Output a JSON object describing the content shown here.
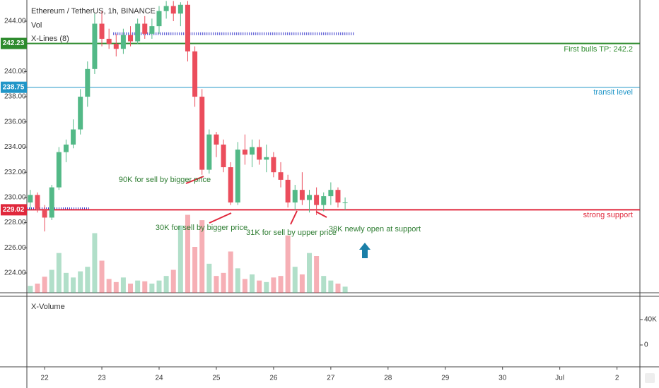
{
  "chart_data": {
    "type": "candlestick",
    "title": "Ethereum / TetherUS, 1h, BINANCE",
    "volume_label": "Vol",
    "lines_label": "X-Lines (8)",
    "lower_pane_label": "X-Volume",
    "up_color": "#53b987",
    "down_color": "#eb4d5c",
    "x": [
      21.75,
      21.875,
      22,
      22.125,
      22.25,
      22.375,
      22.5,
      22.625,
      22.75,
      22.875,
      23,
      23.125,
      23.25,
      23.375,
      23.5,
      23.625,
      23.75,
      23.875,
      24,
      24.125,
      24.25,
      24.375,
      24.5,
      24.625,
      24.75,
      24.875,
      25,
      25.125,
      25.25,
      25.375,
      25.5,
      25.625,
      25.75,
      25.875,
      26,
      26.125,
      26.25,
      26.375,
      26.5,
      26.625,
      26.75,
      26.875,
      27,
      27.125,
      27.25
    ],
    "open": [
      229.6,
      230.2,
      229.1,
      228.4,
      230.8,
      233.6,
      234.2,
      235.4,
      238,
      240.2,
      243.8,
      242.6,
      242.2,
      241.8,
      242.9,
      242.4,
      243.8,
      243,
      243.6,
      244.8,
      245.2,
      244.6,
      245.3,
      241.6,
      238,
      232.2,
      235,
      234.2,
      232.4,
      229.6,
      233.8,
      233.4,
      234,
      233,
      233.2,
      232,
      231.4,
      229.6,
      230.6,
      229.8,
      230.2,
      229.4,
      230.1,
      230.6,
      229.6
    ],
    "high": [
      230.6,
      230.4,
      229.4,
      231,
      234,
      234.6,
      236.2,
      238.6,
      240.8,
      244.6,
      244.8,
      243.4,
      243,
      243.4,
      243.6,
      244.2,
      244.4,
      244.2,
      245.2,
      245.6,
      245.6,
      245.5,
      245.6,
      242,
      238.6,
      235.4,
      235.2,
      234.6,
      232.8,
      234.4,
      235,
      234.6,
      234.6,
      234.2,
      233.6,
      232.8,
      231.8,
      231,
      232,
      230.6,
      230.8,
      230.4,
      231.2,
      230.8,
      230
    ],
    "low": [
      229,
      228.8,
      227.3,
      228.2,
      230.6,
      232.8,
      233.9,
      235,
      237.2,
      239.8,
      242,
      241.8,
      241.2,
      241.4,
      242,
      242.2,
      242.6,
      242.6,
      243,
      244.2,
      244,
      243.6,
      240.8,
      237.2,
      231.8,
      231.9,
      233.2,
      232,
      229.4,
      229.4,
      232.6,
      232.4,
      232.6,
      232,
      231.6,
      230.8,
      229.2,
      229,
      229.4,
      228.8,
      228.6,
      228.9,
      229.4,
      229.2,
      229
    ],
    "close": [
      230.2,
      229.1,
      228.4,
      230.8,
      233.6,
      234.2,
      235.4,
      238,
      240.2,
      243.8,
      242.6,
      242.2,
      241.8,
      242.9,
      242.4,
      243.8,
      243,
      243.6,
      244.8,
      245.2,
      244.6,
      245.3,
      241.6,
      238,
      232.2,
      235,
      234.2,
      232.4,
      229.6,
      233.8,
      233.4,
      234,
      233,
      233.2,
      232,
      231.4,
      229.6,
      230.6,
      229.8,
      230.2,
      229.4,
      230.1,
      230.6,
      229.6,
      229.6
    ],
    "volume": [
      9000,
      12000,
      21000,
      30000,
      52000,
      26000,
      20000,
      28000,
      34000,
      78000,
      42000,
      18000,
      14000,
      20000,
      12000,
      16000,
      15000,
      12000,
      16000,
      22000,
      30000,
      88000,
      102000,
      60000,
      95000,
      38000,
      22000,
      26000,
      54000,
      32000,
      18000,
      24000,
      16000,
      14000,
      20000,
      22000,
      75000,
      34000,
      24000,
      52000,
      48000,
      22000,
      16000,
      12000,
      8000
    ],
    "volume_ylim": [
      0,
      120000
    ],
    "xlim": [
      21.69,
      32.4
    ],
    "xticks": [
      22,
      23,
      24,
      25,
      26,
      27,
      28,
      29,
      30,
      {
        "value": 31,
        "label": "Jul"
      },
      {
        "value": 32,
        "label": "2"
      }
    ],
    "ylim": [
      222.43,
      245.68
    ],
    "yticks": [
      {
        "value": 224,
        "label": "224.00"
      },
      {
        "value": 226,
        "label": "226.00"
      },
      {
        "value": 228,
        "label": "228.00"
      },
      {
        "value": 230,
        "label": "230.00"
      },
      {
        "value": 232,
        "label": "232.00"
      },
      {
        "value": 234,
        "label": "234.00"
      },
      {
        "value": 236,
        "label": "236.00"
      },
      {
        "value": 238,
        "label": "238.00"
      },
      {
        "value": 240,
        "label": "240.00"
      },
      {
        "value": 242,
        "label": "242.00"
      },
      {
        "value": 244,
        "label": "244.00"
      }
    ],
    "levels": [
      {
        "value": 242.23,
        "color": "#2e8b2e",
        "text": "First bulls TP: 242.2"
      },
      {
        "value": 238.75,
        "color": "#2196c8",
        "text": "transit level"
      },
      {
        "value": 229.02,
        "color": "#e0283c",
        "text": "strong support"
      }
    ],
    "x_lines": [
      {
        "value": 243.0,
        "from": 23.2,
        "to": 27.4
      },
      {
        "value": 229.1,
        "from": 21.69,
        "to": 22.8
      }
    ],
    "annotations": [
      "90K for sell by bigger price",
      "30K for sell by bigger price",
      "31K for sell by upper price",
      "38K newly open at support"
    ],
    "lower_pane": {
      "ylim": [
        -34444,
        76667
      ],
      "yticks": [
        {
          "value": 40000,
          "label": "40K"
        },
        0
      ]
    }
  }
}
